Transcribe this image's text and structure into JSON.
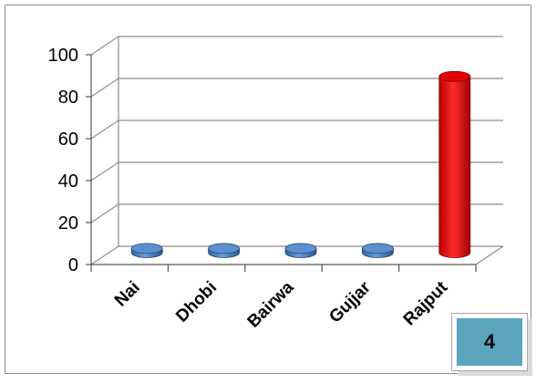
{
  "chart_data": {
    "type": "bar",
    "style": "3d-cylinder",
    "categories": [
      "Nai",
      "Dhobi",
      "Bairwa",
      "Gujjar",
      "Rajput"
    ],
    "values": [
      2,
      2,
      2,
      2,
      84
    ],
    "ylim": [
      0,
      100
    ],
    "yticks": [
      "0",
      "20",
      "40",
      "60",
      "80",
      "100"
    ],
    "grid": true,
    "legend": "none",
    "bar_colors": [
      "#4f81bd",
      "#4f81bd",
      "#4f81bd",
      "#4f81bd",
      "#ff0000"
    ]
  },
  "badge": {
    "label": "4"
  }
}
